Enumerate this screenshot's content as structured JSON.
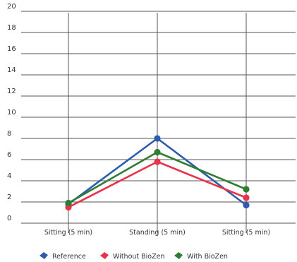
{
  "chart_data": {
    "type": "line",
    "categories": [
      "Sitting (5 min)",
      "Standing (5 min)",
      "Sitting (5 min)"
    ],
    "series": [
      {
        "name": "Reference",
        "values": [
          1.8,
          8.0,
          1.7
        ],
        "color": "#2c5cab"
      },
      {
        "name": "Without BioZen",
        "values": [
          1.5,
          5.8,
          2.4
        ],
        "color": "#e8334a"
      },
      {
        "name": "With BioZen",
        "values": [
          1.9,
          6.7,
          3.2
        ],
        "color": "#2e7d32"
      }
    ],
    "y_ticks": [
      0,
      2,
      4,
      6,
      8,
      10,
      12,
      14,
      16,
      18,
      20
    ],
    "ylim": [
      0,
      20
    ],
    "grid": true,
    "legend_position": "bottom"
  }
}
